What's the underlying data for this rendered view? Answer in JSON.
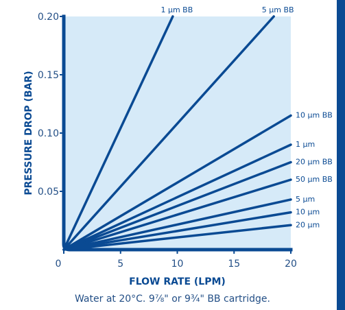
{
  "chart_data": {
    "type": "line",
    "xlabel": "FLOW RATE (LPM)",
    "ylabel": "PRESSURE DROP (BAR)",
    "xlim": [
      0,
      20
    ],
    "ylim": [
      0,
      0.2
    ],
    "x_ticks": [
      "0",
      "5",
      "10",
      "15",
      "20"
    ],
    "y_ticks": [
      "0.05",
      "0.10",
      "0.15",
      "0.20"
    ],
    "grid": false,
    "series": [
      {
        "name": "1 µm BB",
        "x": [
          0,
          9.6
        ],
        "y": [
          0,
          0.2
        ]
      },
      {
        "name": "5 µm BB",
        "x": [
          0,
          18.5
        ],
        "y": [
          0,
          0.2
        ]
      },
      {
        "name": "10 µm BB",
        "x": [
          0,
          20
        ],
        "y": [
          0,
          0.115
        ]
      },
      {
        "name": "1 µm",
        "x": [
          0,
          20
        ],
        "y": [
          0,
          0.09
        ]
      },
      {
        "name": "20 µm BB",
        "x": [
          0,
          20
        ],
        "y": [
          0,
          0.075
        ]
      },
      {
        "name": "50 µm BB",
        "x": [
          0,
          20
        ],
        "y": [
          0,
          0.06
        ]
      },
      {
        "name": "5 µm",
        "x": [
          0,
          20
        ],
        "y": [
          0,
          0.043
        ]
      },
      {
        "name": "10 µm",
        "x": [
          0,
          20
        ],
        "y": [
          0,
          0.032
        ]
      },
      {
        "name": "20 µm",
        "x": [
          0,
          20
        ],
        "y": [
          0,
          0.021
        ]
      }
    ],
    "colors": {
      "line": "#0a4a93",
      "plot_bg": "#d6eaf8",
      "text": "#234f86"
    }
  },
  "caption": "Water at 20°C. 9⅞\" or 9¾\" BB cartridge."
}
